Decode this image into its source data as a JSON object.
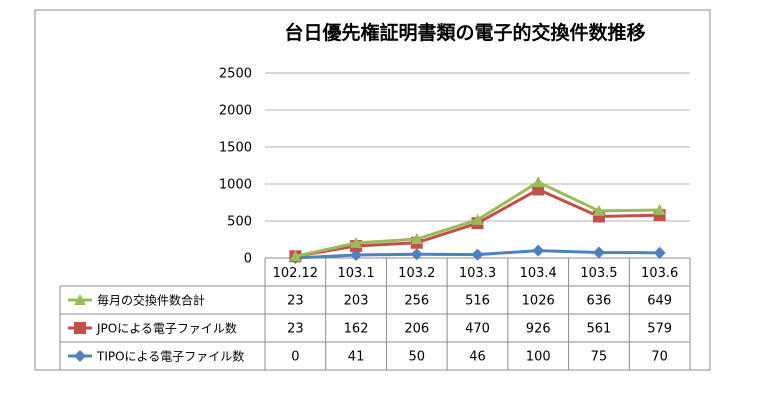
{
  "chart_data": {
    "type": "line",
    "title": "台日優先権証明書類の電子的交換件数推移",
    "categories": [
      "102.12",
      "103.1",
      "103.2",
      "103.3",
      "103.4",
      "103.5",
      "103.6"
    ],
    "y_ticks": [
      "0",
      "500",
      "1000",
      "1500",
      "2000",
      "2500"
    ],
    "ylim": [
      0,
      2500
    ],
    "grid": true,
    "legend_placement": "data-table",
    "series": [
      {
        "name": "毎月の交換件数合計",
        "marker": "triangle",
        "color": "#9bbb59",
        "values": [
          23,
          203,
          256,
          516,
          1026,
          636,
          649
        ],
        "labels": [
          "23",
          "203",
          "256",
          "516",
          "1026",
          "636",
          "649"
        ]
      },
      {
        "name": "JPOによる電子ファイル数",
        "marker": "square",
        "color": "#c0504d",
        "values": [
          23,
          162,
          206,
          470,
          926,
          561,
          579
        ],
        "labels": [
          "23",
          "162",
          "206",
          "470",
          "926",
          "561",
          "579"
        ]
      },
      {
        "name": "TIPOによる電子ファイル数",
        "marker": "diamond",
        "color": "#4f81bd",
        "values": [
          0,
          41,
          50,
          46,
          100,
          75,
          70
        ],
        "labels": [
          "0",
          "41",
          "50",
          "46",
          "100",
          "75",
          "70"
        ]
      }
    ]
  }
}
